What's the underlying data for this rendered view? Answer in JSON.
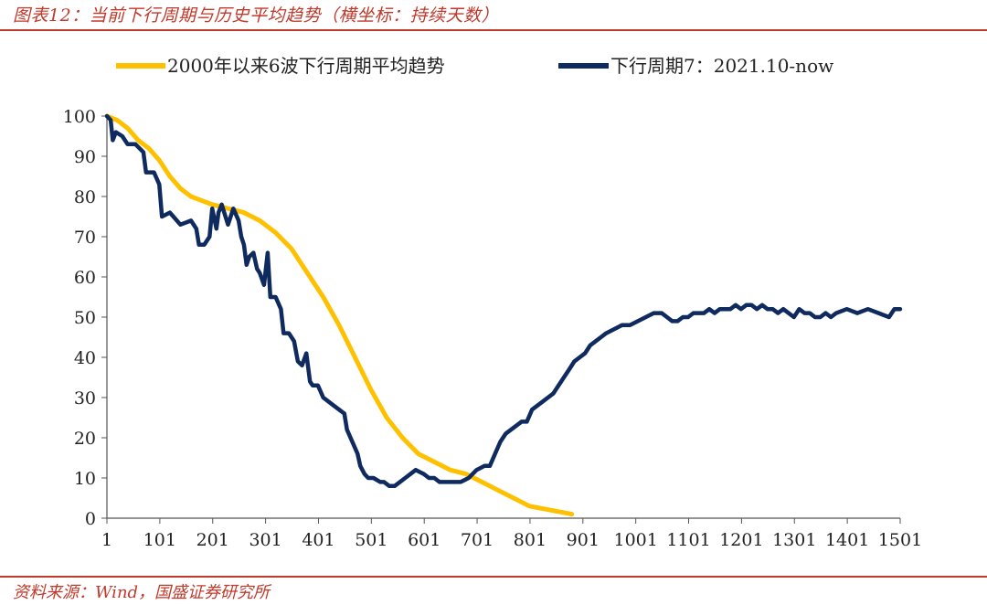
{
  "title": "图表12：当前下行周期与历史平均趋势（横坐标：持续天数）",
  "source": "资料来源：Wind，国盛证券研究所",
  "colors": {
    "accent": "#c0392b",
    "avg_series": "#ffc000",
    "current_series": "#0f2a5f"
  },
  "chart_data": {
    "type": "line",
    "xlabel": "",
    "ylabel": "",
    "x_ticks": [
      "1",
      "101",
      "201",
      "301",
      "401",
      "501",
      "601",
      "701",
      "801",
      "901",
      "1001",
      "1101",
      "1201",
      "1301",
      "1401",
      "1501"
    ],
    "y_ticks": [
      "0",
      "10",
      "20",
      "30",
      "40",
      "50",
      "60",
      "70",
      "80",
      "90",
      "100"
    ],
    "xlim": [
      1,
      1501
    ],
    "ylim": [
      0,
      100
    ],
    "legend": "top",
    "series": [
      {
        "name": "2000年以来6波下行周期平均趋势",
        "color": "#ffc000",
        "points": [
          [
            1,
            100
          ],
          [
            20,
            99
          ],
          [
            40,
            97
          ],
          [
            60,
            94
          ],
          [
            80,
            92
          ],
          [
            100,
            89
          ],
          [
            120,
            85
          ],
          [
            140,
            82
          ],
          [
            160,
            80
          ],
          [
            180,
            79
          ],
          [
            200,
            78
          ],
          [
            230,
            77
          ],
          [
            260,
            76
          ],
          [
            290,
            74
          ],
          [
            320,
            71
          ],
          [
            350,
            67
          ],
          [
            380,
            61
          ],
          [
            410,
            55
          ],
          [
            440,
            48
          ],
          [
            470,
            40
          ],
          [
            500,
            32
          ],
          [
            530,
            25
          ],
          [
            560,
            20
          ],
          [
            590,
            16
          ],
          [
            620,
            14
          ],
          [
            650,
            12
          ],
          [
            680,
            11
          ],
          [
            710,
            9
          ],
          [
            740,
            7
          ],
          [
            770,
            5
          ],
          [
            800,
            3
          ],
          [
            840,
            2
          ],
          [
            880,
            1
          ]
        ]
      },
      {
        "name": "下行周期7：2021.10-now",
        "color": "#0f2a5f",
        "points": [
          [
            1,
            100
          ],
          [
            8,
            99
          ],
          [
            12,
            94
          ],
          [
            18,
            96
          ],
          [
            30,
            95
          ],
          [
            40,
            93
          ],
          [
            55,
            93
          ],
          [
            70,
            91
          ],
          [
            75,
            86
          ],
          [
            90,
            86
          ],
          [
            100,
            83
          ],
          [
            105,
            75
          ],
          [
            120,
            76
          ],
          [
            140,
            73
          ],
          [
            160,
            74
          ],
          [
            170,
            72
          ],
          [
            175,
            68
          ],
          [
            185,
            68
          ],
          [
            195,
            70
          ],
          [
            200,
            77
          ],
          [
            208,
            72
          ],
          [
            212,
            76
          ],
          [
            218,
            78
          ],
          [
            230,
            73
          ],
          [
            240,
            77
          ],
          [
            250,
            74
          ],
          [
            255,
            70
          ],
          [
            260,
            68
          ],
          [
            265,
            63
          ],
          [
            270,
            65
          ],
          [
            278,
            66
          ],
          [
            285,
            62
          ],
          [
            290,
            61
          ],
          [
            298,
            58
          ],
          [
            305,
            66
          ],
          [
            310,
            55
          ],
          [
            320,
            55
          ],
          [
            330,
            52
          ],
          [
            335,
            46
          ],
          [
            345,
            46
          ],
          [
            355,
            44
          ],
          [
            362,
            39
          ],
          [
            370,
            38
          ],
          [
            378,
            41
          ],
          [
            385,
            34
          ],
          [
            390,
            33
          ],
          [
            400,
            33
          ],
          [
            410,
            30
          ],
          [
            420,
            29
          ],
          [
            430,
            28
          ],
          [
            440,
            27
          ],
          [
            450,
            26
          ],
          [
            455,
            22
          ],
          [
            465,
            19
          ],
          [
            475,
            16
          ],
          [
            480,
            13
          ],
          [
            488,
            11
          ],
          [
            495,
            10
          ],
          [
            505,
            10
          ],
          [
            518,
            9
          ],
          [
            525,
            9
          ],
          [
            535,
            8
          ],
          [
            545,
            8
          ],
          [
            555,
            9
          ],
          [
            565,
            10
          ],
          [
            575,
            11
          ],
          [
            585,
            12
          ],
          [
            600,
            11
          ],
          [
            610,
            10
          ],
          [
            620,
            10
          ],
          [
            630,
            9
          ],
          [
            640,
            9
          ],
          [
            655,
            9
          ],
          [
            670,
            9
          ],
          [
            685,
            10
          ],
          [
            700,
            12
          ],
          [
            715,
            13
          ],
          [
            725,
            13
          ],
          [
            735,
            16
          ],
          [
            745,
            19
          ],
          [
            755,
            21
          ],
          [
            765,
            22
          ],
          [
            775,
            23
          ],
          [
            785,
            24
          ],
          [
            795,
            24
          ],
          [
            805,
            27
          ],
          [
            815,
            28
          ],
          [
            825,
            29
          ],
          [
            835,
            30
          ],
          [
            845,
            31
          ],
          [
            855,
            33
          ],
          [
            865,
            35
          ],
          [
            875,
            37
          ],
          [
            885,
            39
          ],
          [
            895,
            40
          ],
          [
            905,
            41
          ],
          [
            915,
            43
          ],
          [
            925,
            44
          ],
          [
            935,
            45
          ],
          [
            945,
            46
          ],
          [
            960,
            47
          ],
          [
            975,
            48
          ],
          [
            990,
            48
          ],
          [
            1005,
            49
          ],
          [
            1020,
            50
          ],
          [
            1035,
            51
          ],
          [
            1050,
            51
          ],
          [
            1060,
            50
          ],
          [
            1070,
            49
          ],
          [
            1080,
            49
          ],
          [
            1090,
            50
          ],
          [
            1100,
            50
          ],
          [
            1110,
            51
          ],
          [
            1120,
            51
          ],
          [
            1130,
            51
          ],
          [
            1140,
            52
          ],
          [
            1150,
            51
          ],
          [
            1160,
            52
          ],
          [
            1170,
            52
          ],
          [
            1180,
            52
          ],
          [
            1190,
            53
          ],
          [
            1200,
            52
          ],
          [
            1210,
            53
          ],
          [
            1220,
            53
          ],
          [
            1230,
            52
          ],
          [
            1240,
            53
          ],
          [
            1250,
            52
          ],
          [
            1260,
            52
          ],
          [
            1270,
            51
          ],
          [
            1280,
            52
          ],
          [
            1290,
            51
          ],
          [
            1300,
            50
          ],
          [
            1310,
            52
          ],
          [
            1320,
            51
          ],
          [
            1330,
            51
          ],
          [
            1340,
            50
          ],
          [
            1350,
            50
          ],
          [
            1360,
            51
          ],
          [
            1370,
            50
          ],
          [
            1380,
            51
          ],
          [
            1400,
            52
          ],
          [
            1420,
            51
          ],
          [
            1440,
            52
          ],
          [
            1460,
            51
          ],
          [
            1480,
            50
          ],
          [
            1490,
            52
          ],
          [
            1501,
            52
          ]
        ]
      }
    ]
  }
}
